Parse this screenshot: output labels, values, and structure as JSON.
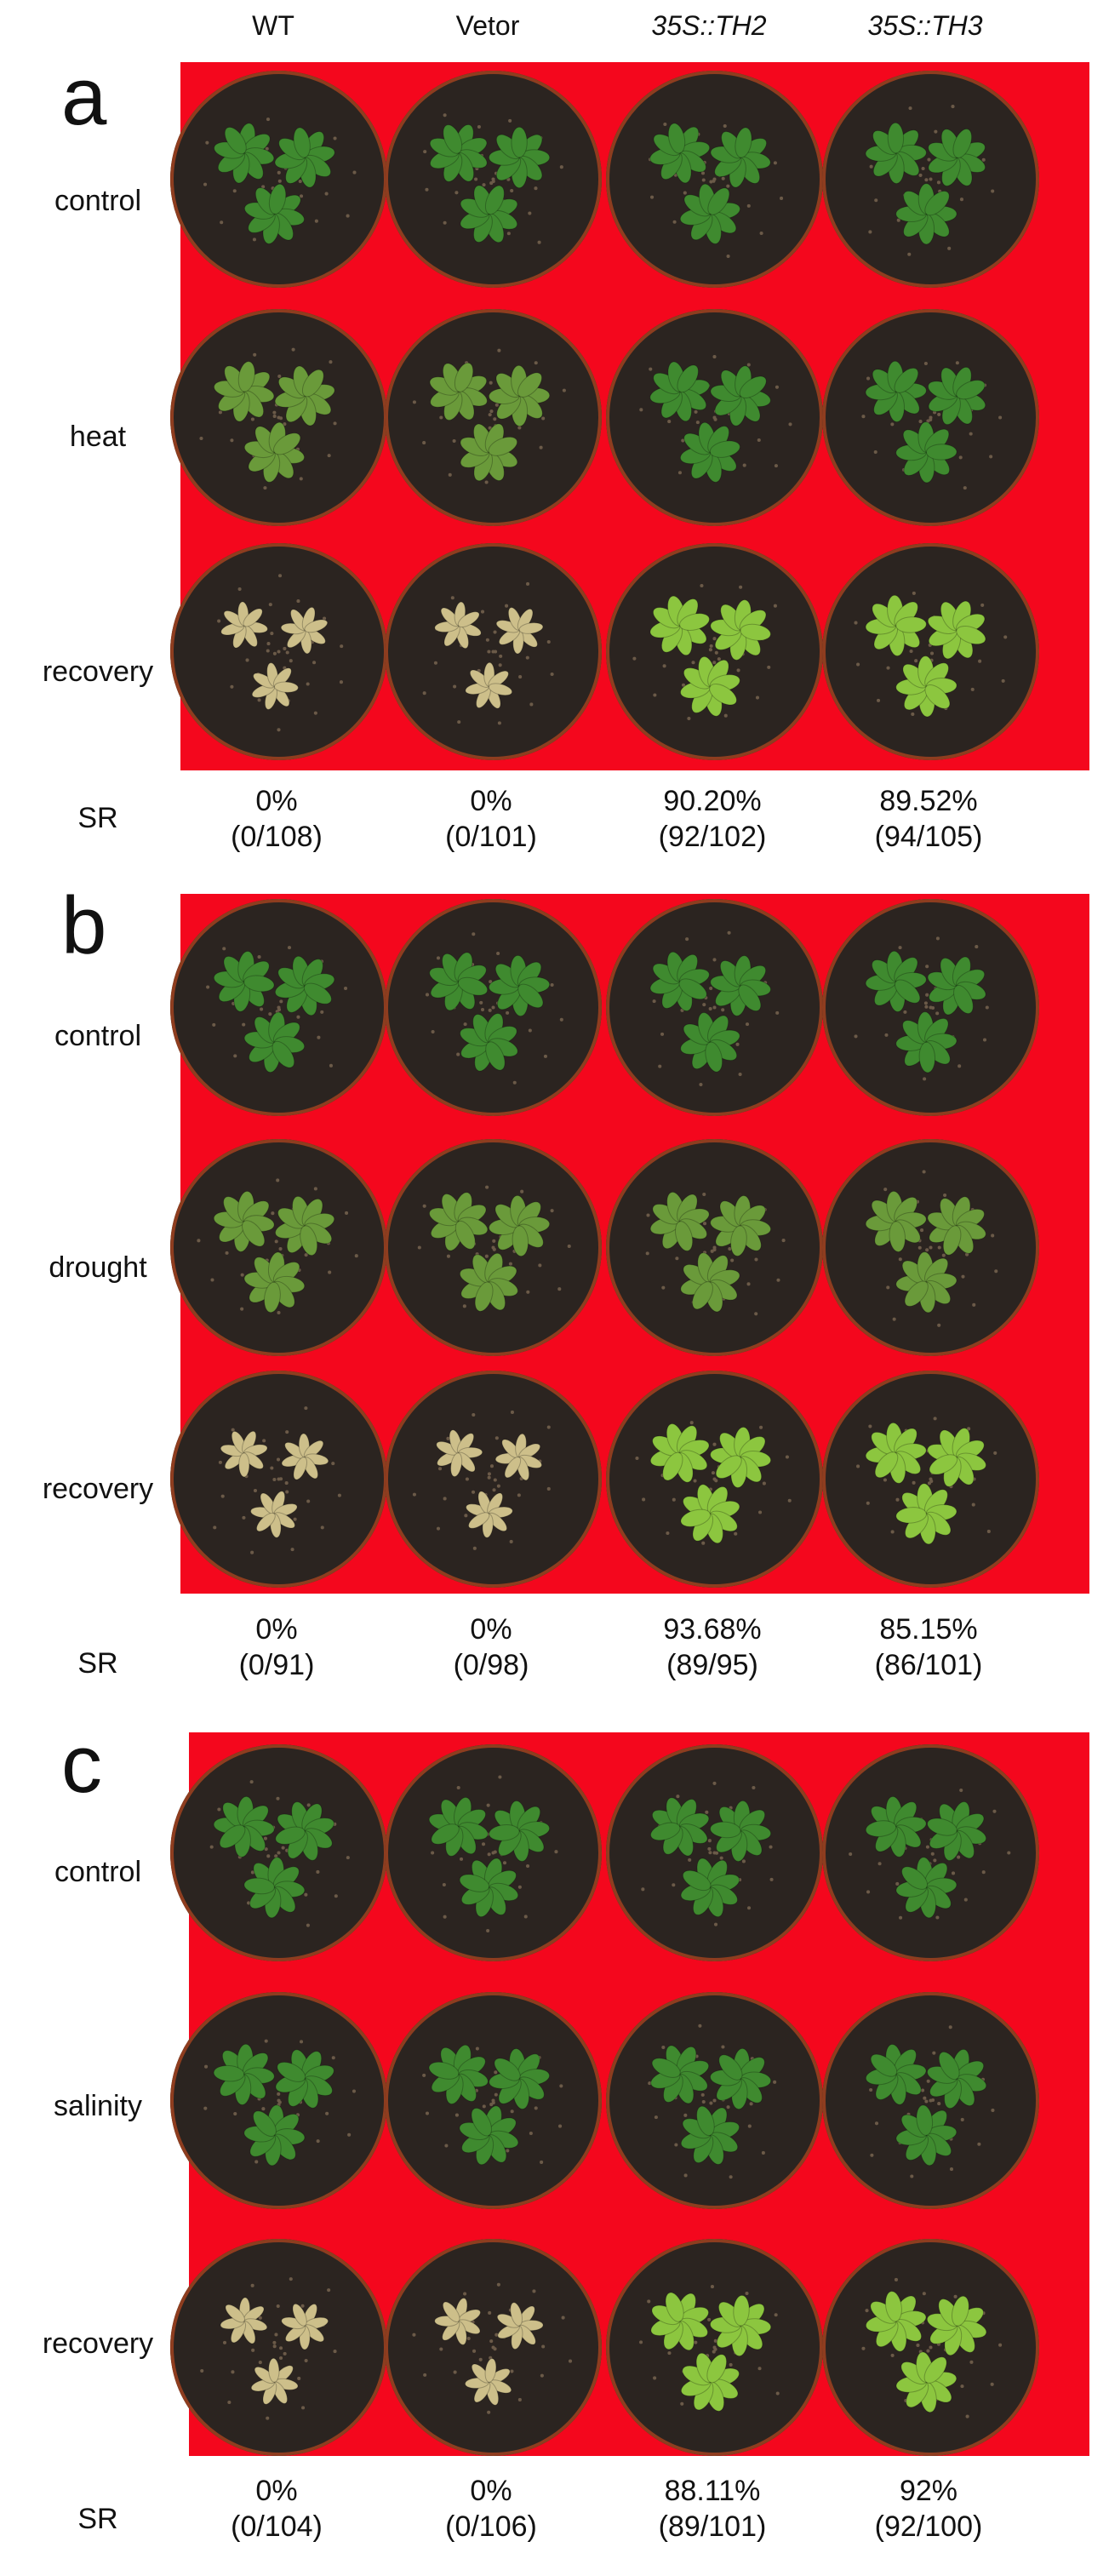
{
  "columns": [
    "WT",
    "Vetor",
    "35S::TH2",
    "35S::TH3"
  ],
  "columns_italic": [
    false,
    false,
    true,
    true
  ],
  "panels": [
    {
      "letter": "a",
      "rows": [
        "control",
        "heat",
        "recovery"
      ],
      "plant_condition": [
        [
          "healthy",
          "healthy",
          "healthy",
          "healthy"
        ],
        [
          "stressed",
          "stressed",
          "healthy",
          "healthy"
        ],
        [
          "dead",
          "dead",
          "recovered",
          "recovered"
        ]
      ],
      "sr_label": "SR",
      "sr": [
        {
          "percent": "0%",
          "count": "(0/108)"
        },
        {
          "percent": "0%",
          "count": "(0/101)"
        },
        {
          "percent": "90.20%",
          "count": "(92/102)"
        },
        {
          "percent": "89.52%",
          "count": "(94/105)"
        }
      ]
    },
    {
      "letter": "b",
      "rows": [
        "control",
        "drought",
        "recovery"
      ],
      "plant_condition": [
        [
          "healthy",
          "healthy",
          "healthy",
          "healthy"
        ],
        [
          "stressed",
          "stressed",
          "stressed",
          "stressed"
        ],
        [
          "dead",
          "dead",
          "recovered",
          "recovered"
        ]
      ],
      "sr_label": "SR",
      "sr": [
        {
          "percent": "0%",
          "count": "(0/91)"
        },
        {
          "percent": "0%",
          "count": "(0/98)"
        },
        {
          "percent": "93.68%",
          "count": "(89/95)"
        },
        {
          "percent": "85.15%",
          "count": "(86/101)"
        }
      ]
    },
    {
      "letter": "c",
      "rows": [
        "control",
        "salinity",
        "recovery"
      ],
      "plant_condition": [
        [
          "healthy",
          "healthy",
          "healthy",
          "healthy"
        ],
        [
          "healthy",
          "healthy",
          "healthy",
          "healthy"
        ],
        [
          "dead",
          "dead",
          "recovered",
          "recovered"
        ]
      ],
      "sr_label": "SR",
      "sr": [
        {
          "percent": "0%",
          "count": "(0/104)"
        },
        {
          "percent": "0%",
          "count": "(0/106)"
        },
        {
          "percent": "88.11%",
          "count": "(89/101)"
        },
        {
          "percent": "92%",
          "count": "(92/100)"
        }
      ]
    }
  ],
  "colors": {
    "panel_background": "#f4071d",
    "healthy_leaf": "#3f8a2f",
    "stressed_leaf": "#6a9a3a",
    "dead_leaf": "#cdbf8a",
    "recovered_leaf": "#8cc63f",
    "soil": "#2b2420"
  }
}
